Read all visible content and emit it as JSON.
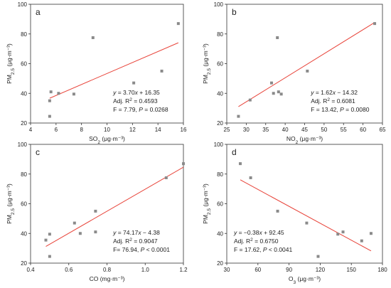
{
  "colors": {
    "points": "#8a8a8a",
    "fit": "#e8443a",
    "frame": "#333333"
  },
  "chart_data": [
    {
      "type": "scatter",
      "panel_label": "a",
      "xlabel_main": "SO",
      "xlabel_sub": "2",
      "xlabel_unit": " (μg·m⁻³)",
      "ylabel_main": "PM",
      "ylabel_sub": "2.5",
      "ylabel_unit": " (μg·m⁻³)",
      "xlim": [
        4,
        16
      ],
      "ylim": [
        20,
        100
      ],
      "xticks": [
        4,
        6,
        8,
        10,
        12,
        14,
        16
      ],
      "yticks": [
        20,
        40,
        60,
        80,
        100
      ],
      "points": [
        [
          5.5,
          24.5
        ],
        [
          5.5,
          35
        ],
        [
          5.6,
          41
        ],
        [
          6.2,
          40
        ],
        [
          7.4,
          39.5
        ],
        [
          8.9,
          77.5
        ],
        [
          12.1,
          47
        ],
        [
          14.3,
          55
        ],
        [
          15.6,
          87
        ]
      ],
      "fit": {
        "slope": 3.7,
        "intercept": 16.35,
        "x_range": [
          5.5,
          15.6
        ]
      },
      "annotation": [
        {
          "parts": [
            [
              "y",
              "i"
            ],
            [
              " = 3.70",
              ""
            ],
            [
              "x",
              "i"
            ],
            [
              " + 16.35",
              ""
            ]
          ]
        },
        {
          "parts": [
            [
              "Adj. R",
              ""
            ],
            [
              "2",
              "sup"
            ],
            [
              " = 0.4593",
              ""
            ]
          ]
        },
        {
          "parts": [
            [
              "F = 7.79, ",
              ""
            ],
            [
              "P",
              "i"
            ],
            [
              " = 0.0268",
              ""
            ]
          ]
        }
      ],
      "anno_pos": "bottom-right"
    },
    {
      "type": "scatter",
      "panel_label": "b",
      "xlabel_main": "NO",
      "xlabel_sub": "2",
      "xlabel_unit": " (μg·m⁻³)",
      "ylabel_main": "PM",
      "ylabel_sub": "2.5",
      "ylabel_unit": " (μg·m⁻³)",
      "xlim": [
        25,
        65
      ],
      "ylim": [
        20,
        100
      ],
      "xticks": [
        25,
        30,
        35,
        40,
        45,
        50,
        55,
        60,
        65
      ],
      "yticks": [
        20,
        40,
        60,
        80,
        100
      ],
      "points": [
        [
          28,
          24.5
        ],
        [
          31,
          35.5
        ],
        [
          36.5,
          47
        ],
        [
          37,
          40
        ],
        [
          38,
          77.5
        ],
        [
          38.3,
          41
        ],
        [
          39,
          39.5
        ],
        [
          45.7,
          55
        ],
        [
          63,
          87
        ]
      ],
      "fit": {
        "slope": 1.62,
        "intercept": -14.32,
        "x_range": [
          28,
          63
        ]
      },
      "annotation": [
        {
          "parts": [
            [
              "y",
              "i"
            ],
            [
              " = 1.62",
              ""
            ],
            [
              "x",
              "i"
            ],
            [
              " − 14.32",
              ""
            ]
          ]
        },
        {
          "parts": [
            [
              "Adj. R",
              ""
            ],
            [
              "2",
              "sup"
            ],
            [
              " = 0.6081",
              ""
            ]
          ]
        },
        {
          "parts": [
            [
              "F = 13.42, ",
              ""
            ],
            [
              "P",
              "i"
            ],
            [
              " = 0.0080",
              ""
            ]
          ]
        }
      ],
      "anno_pos": "bottom-right"
    },
    {
      "type": "scatter",
      "panel_label": "c",
      "xlabel_main": "CO",
      "xlabel_sub": "",
      "xlabel_unit": " (mg·m⁻³)",
      "ylabel_main": "PM",
      "ylabel_sub": "2.5",
      "ylabel_unit": " (μg·m⁻³)",
      "xlim": [
        0.4,
        1.2
      ],
      "ylim": [
        20,
        100
      ],
      "xticks": [
        0.4,
        0.6,
        0.8,
        1.0,
        1.2
      ],
      "yticks": [
        20,
        40,
        60,
        80,
        100
      ],
      "xtick_labels": [
        "0.4",
        "0.6",
        "0.8",
        "1.0",
        "1.2"
      ],
      "points": [
        [
          0.48,
          35.5
        ],
        [
          0.5,
          24.5
        ],
        [
          0.5,
          39.5
        ],
        [
          0.63,
          47
        ],
        [
          0.66,
          40
        ],
        [
          0.74,
          55
        ],
        [
          0.74,
          41
        ],
        [
          1.11,
          77.5
        ],
        [
          1.2,
          87
        ]
      ],
      "fit": {
        "slope": 74.17,
        "intercept": -4.38,
        "x_range": [
          0.48,
          1.2
        ]
      },
      "annotation": [
        {
          "parts": [
            [
              "y",
              "i"
            ],
            [
              " = 74.17",
              ""
            ],
            [
              "x",
              "i"
            ],
            [
              " − 4.38",
              ""
            ]
          ]
        },
        {
          "parts": [
            [
              "Adj. R",
              ""
            ],
            [
              "2",
              "sup"
            ],
            [
              " = 0.9047",
              ""
            ]
          ]
        },
        {
          "parts": [
            [
              "F= 76.94, ",
              ""
            ],
            [
              "P",
              "i"
            ],
            [
              " < 0.0001",
              ""
            ]
          ]
        }
      ],
      "anno_pos": "bottom-right"
    },
    {
      "type": "scatter",
      "panel_label": "d",
      "xlabel_main": "O",
      "xlabel_sub": "3",
      "xlabel_unit": " (μg·m⁻³)",
      "ylabel_main": "PM",
      "ylabel_sub": "2.5",
      "ylabel_unit": " (μg·m⁻³)",
      "xlim": [
        30,
        180
      ],
      "ylim": [
        20,
        100
      ],
      "xticks": [
        30,
        60,
        90,
        120,
        150,
        180
      ],
      "yticks": [
        20,
        40,
        60,
        80,
        100
      ],
      "points": [
        [
          43,
          87
        ],
        [
          53,
          77.5
        ],
        [
          79,
          55
        ],
        [
          107,
          47
        ],
        [
          118,
          24.5
        ],
        [
          137,
          39.5
        ],
        [
          142,
          41
        ],
        [
          160,
          35
        ],
        [
          169,
          40
        ]
      ],
      "fit": {
        "slope": -0.38,
        "intercept": 92.45,
        "x_range": [
          43,
          169
        ]
      },
      "annotation": [
        {
          "parts": [
            [
              "y",
              "i"
            ],
            [
              " = −0.38",
              ""
            ],
            [
              "x",
              "i"
            ],
            [
              " + 92.45",
              ""
            ]
          ]
        },
        {
          "parts": [
            [
              "Adj. R",
              ""
            ],
            [
              "2",
              "sup"
            ],
            [
              " = 0.6750",
              ""
            ]
          ]
        },
        {
          "parts": [
            [
              "F = 17.62, ",
              ""
            ],
            [
              "P",
              "i"
            ],
            [
              " < 0.0041",
              ""
            ]
          ]
        }
      ],
      "anno_pos": "bottom-left"
    }
  ]
}
